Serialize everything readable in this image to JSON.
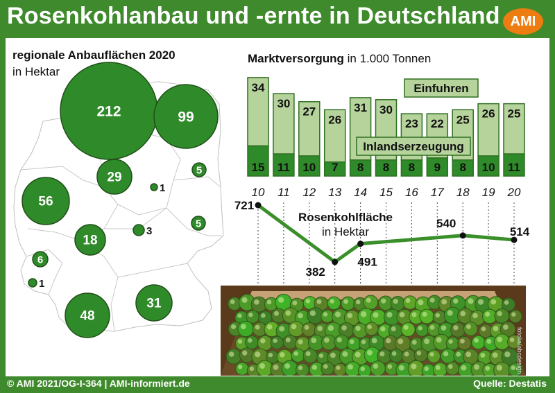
{
  "title": "Rosenkohlanbau und -ernte in Deutschland",
  "logo": "AMI",
  "footer": {
    "left": "© AMI 2021/OG-I-364 | AMI-informiert.de",
    "right": "Quelle: Destatis"
  },
  "map": {
    "title": "regionale Anbauflächen 2020",
    "subtitle": "in Hektar"
  },
  "colors": {
    "background": "#3f8a2c",
    "dark_green": "#2f8a2a",
    "light_green": "#b6d39c",
    "line": "#3a8f2a",
    "logo": "#ee7d11"
  },
  "chart_data": [
    {
      "type": "bubble-map",
      "title": "regionale Anbauflächen 2020",
      "subtitle": "in Hektar",
      "values": [
        212,
        99,
        56,
        29,
        18,
        48,
        31,
        6,
        5,
        5,
        3,
        1,
        1
      ]
    },
    {
      "type": "bar",
      "stacked": true,
      "title": "Marktversorgung",
      "unit": "in 1.000 Tonnen",
      "categories": [
        "10",
        "11",
        "12",
        "13",
        "14",
        "15",
        "16",
        "17",
        "18",
        "19",
        "20"
      ],
      "series": [
        {
          "name": "Inlandserzeugung",
          "values": [
            15,
            11,
            10,
            7,
            8,
            8,
            8,
            9,
            8,
            10,
            11
          ]
        },
        {
          "name": "Einfuhren",
          "values": [
            34,
            30,
            27,
            26,
            31,
            30,
            23,
            22,
            25,
            26,
            25
          ]
        }
      ]
    },
    {
      "type": "line",
      "title": "Rosenkohlfläche",
      "unit": "in Hektar",
      "x": [
        "10",
        "11",
        "12",
        "13",
        "14",
        "15",
        "16",
        "17",
        "18",
        "19",
        "20"
      ],
      "values": [
        721,
        null,
        null,
        382,
        491,
        null,
        null,
        null,
        540,
        null,
        514
      ],
      "labeled": [
        {
          "x": "10",
          "label": "721"
        },
        {
          "x": "13",
          "label": "382"
        },
        {
          "x": "14",
          "label": "491"
        },
        {
          "x": "18",
          "label": "540"
        },
        {
          "x": "20",
          "label": "514"
        }
      ],
      "credit": "fotolia/abcdesign"
    }
  ]
}
